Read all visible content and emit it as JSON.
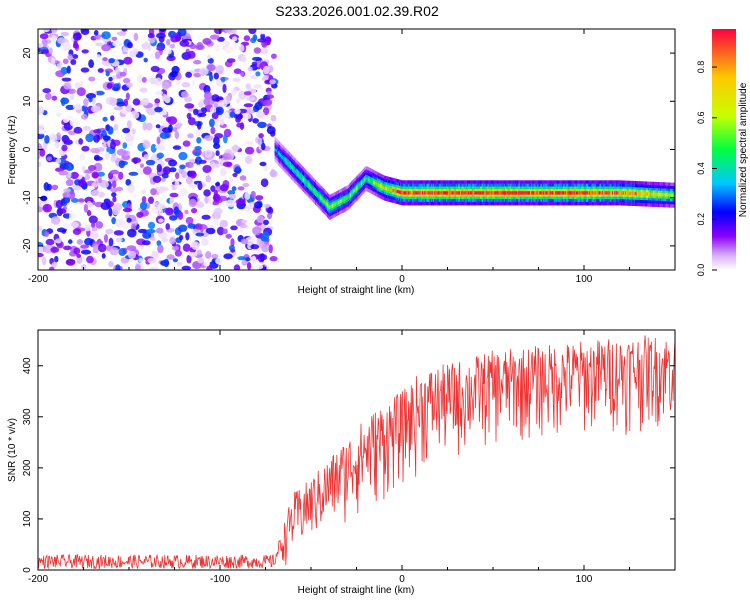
{
  "title": "S233.2026.001.02.39.R02",
  "chart_data": [
    {
      "type": "heatmap",
      "xlabel": "Height of straight line (km)",
      "ylabel": "Frequency (Hz)",
      "xlim": [
        -200,
        150
      ],
      "ylim": [
        -25,
        25
      ],
      "xticks": [
        "-200",
        "-100",
        "0",
        "100"
      ],
      "yticks": [
        "20",
        "10",
        "0",
        "-10",
        "-20"
      ],
      "colorbar": {
        "label": "Normalized spectral amplitude",
        "range": [
          0,
          0.95
        ],
        "ticks": [
          "0.0",
          "0.2",
          "0.4",
          "0.6",
          "0.8"
        ],
        "colors": [
          "#ffffff",
          "#8a00ff",
          "#0000ff",
          "#00c8ff",
          "#00ff40",
          "#c8ff00",
          "#ffc800",
          "#ff0040"
        ]
      },
      "noise_region": {
        "x": [
          -200,
          -70
        ],
        "amplitude": 0.3
      },
      "ridge": {
        "x": [
          -70,
          -65,
          -60,
          -55,
          -50,
          -45,
          -40,
          -35,
          -30,
          -25,
          -20,
          -15,
          -10,
          -5,
          0,
          20,
          50,
          80,
          100,
          120,
          150
        ],
        "y": [
          0,
          -2,
          -4,
          -6,
          -8,
          -10,
          -12,
          -11,
          -10,
          -8,
          -6,
          -7,
          -8,
          -8.5,
          -9,
          -9,
          -9,
          -9,
          -9,
          -9,
          -9.5
        ],
        "amplitude": [
          0.3,
          0.4,
          0.45,
          0.5,
          0.5,
          0.55,
          0.6,
          0.55,
          0.5,
          0.55,
          0.45,
          0.6,
          0.7,
          0.8,
          0.9,
          0.95,
          0.95,
          0.9,
          0.95,
          0.85,
          0.6
        ]
      }
    },
    {
      "type": "line",
      "xlabel": "Height of straight line (km)",
      "ylabel": "SNR (10 * v/v)",
      "xlim": [
        -200,
        150
      ],
      "ylim": [
        0,
        470
      ],
      "xticks": [
        "-200",
        "-100",
        "0",
        "100"
      ],
      "yticks": [
        "0",
        "100",
        "200",
        "300",
        "400"
      ],
      "series": [
        {
          "color": "#ee3333",
          "envelope": {
            "x": [
              -200,
              -70,
              -60,
              -50,
              -40,
              -30,
              -20,
              -10,
              0,
              10,
              20,
              30,
              40,
              50,
              75,
              100,
              125,
              150
            ],
            "low": [
              3,
              3,
              10,
              40,
              60,
              80,
              100,
              120,
              150,
              180,
              200,
              200,
              220,
              230,
              240,
              250,
              260,
              270
            ],
            "high": [
              30,
              30,
              150,
              180,
              220,
              260,
              300,
              330,
              350,
              390,
              400,
              410,
              420,
              430,
              440,
              450,
              460,
              460
            ]
          }
        }
      ]
    }
  ]
}
